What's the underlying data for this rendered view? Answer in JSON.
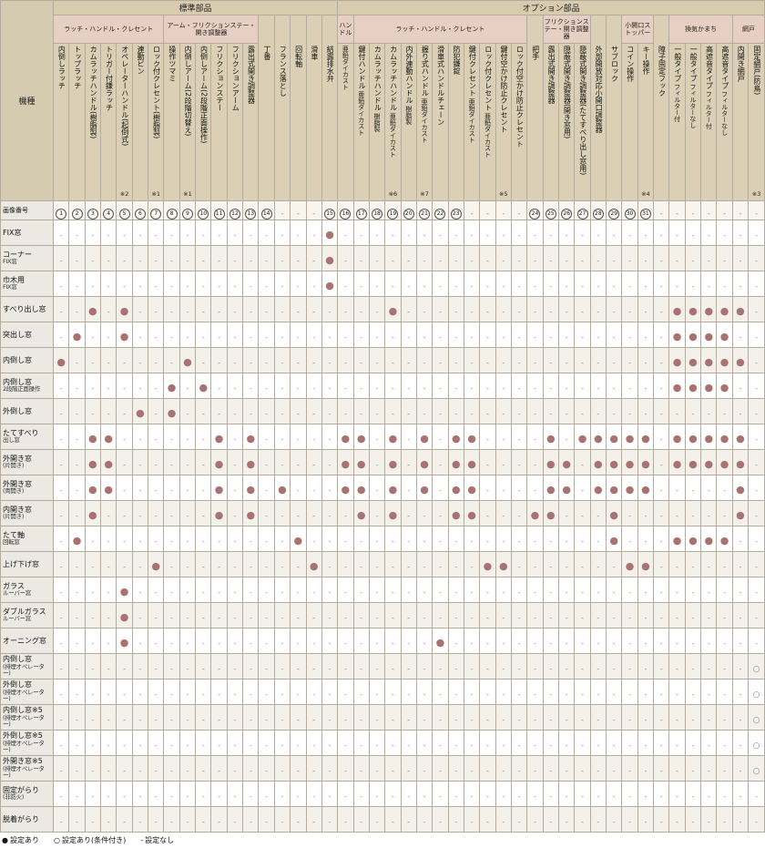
{
  "colors": {
    "dot": "#a87272",
    "header_beige": "#dbd0b5",
    "group_pink": "#e8cfc3",
    "top_band": "#d8cbae",
    "grid_line": "#b3ac9e",
    "row_label_bg": "#ebe9e1",
    "alt_row_bg": "#f3f1ea"
  },
  "header": {
    "model_label": "機種",
    "image_number_label": "画像番号",
    "sections": [
      {
        "label": "標準部品",
        "span": 18
      },
      {
        "label": "オプション部品",
        "span": 27
      }
    ],
    "groups": [
      {
        "label": "ラッチ・ハンドル・クレセント",
        "span": 7
      },
      {
        "label": "アーム・フリクションステー・開き調整器",
        "span": 6
      },
      {
        "label": "",
        "span": 1
      },
      {
        "label": "",
        "span": 1
      },
      {
        "label": "",
        "span": 1
      },
      {
        "label": "",
        "span": 1
      },
      {
        "label": "",
        "span": 1
      },
      {
        "label": "ハンドル",
        "span": 1
      },
      {
        "label": "ラッチ・ハンドル・クレセント",
        "span": 11
      },
      {
        "label": "",
        "span": 1
      },
      {
        "label": "フリクションステー・開き調整器",
        "span": 3
      },
      {
        "label": "",
        "span": 1
      },
      {
        "label": "",
        "span": 1
      },
      {
        "label": "小開口ストッパー",
        "span": 2
      },
      {
        "label": "",
        "span": 1
      },
      {
        "label": "換気かまち",
        "span": 4
      },
      {
        "label": "網戸",
        "span": 2
      }
    ],
    "columns": [
      {
        "label": "内倒しラッチ",
        "sub": "",
        "note": "",
        "num": "1"
      },
      {
        "label": "トップラッチ",
        "sub": "",
        "note": "",
        "num": "2"
      },
      {
        "label": "カムラッチハンドル(樹脂製)",
        "sub": "",
        "note": "",
        "num": "3"
      },
      {
        "label": "トリガー付鎌ラッチ",
        "sub": "",
        "note": "",
        "num": "4"
      },
      {
        "label": "オペレーターハンドル(起倒式)",
        "sub": "",
        "note": "※2",
        "num": "5"
      },
      {
        "label": "連動ビン",
        "sub": "",
        "note": "",
        "num": "6"
      },
      {
        "label": "ロック付クレセント(樹脂製)",
        "sub": "",
        "note": "※1",
        "num": "7"
      },
      {
        "label": "操作ツマミ",
        "sub": "",
        "note": "",
        "num": "8"
      },
      {
        "label": "内倒しアーム(2段階切替え)",
        "sub": "",
        "note": "※1",
        "num": "9"
      },
      {
        "label": "内倒しアーム(2段階正面操作)",
        "sub": "",
        "note": "",
        "num": "10"
      },
      {
        "label": "フリクションステー",
        "sub": "",
        "note": "",
        "num": "11"
      },
      {
        "label": "フリクションアーム",
        "sub": "",
        "note": "",
        "num": "12"
      },
      {
        "label": "露出式開き調整器",
        "sub": "",
        "note": "",
        "num": "13"
      },
      {
        "label": "丁番",
        "sub": "",
        "note": "",
        "num": "14"
      },
      {
        "label": "フランス落とし",
        "sub": "",
        "note": "",
        "num": "-"
      },
      {
        "label": "回転軸",
        "sub": "",
        "note": "",
        "num": "-"
      },
      {
        "label": "滑車",
        "sub": "",
        "note": "",
        "num": "-"
      },
      {
        "label": "結露排水弁",
        "sub": "",
        "note": "",
        "num": "15"
      },
      {
        "label": "",
        "sub": "亜鉛ダイカスト",
        "note": "",
        "num": "16"
      },
      {
        "label": "鍵付ハンドル",
        "sub": "亜鉛ダイカスト",
        "note": "",
        "num": "17"
      },
      {
        "label": "カムラッチハンドル",
        "sub": "樹脂製",
        "note": "",
        "num": "18"
      },
      {
        "label": "カムラッチハンドル",
        "sub": "亜鉛ダイカスト",
        "note": "※6",
        "num": "19"
      },
      {
        "label": "内外連動ハンドル",
        "sub": "樹脂製",
        "note": "",
        "num": "20"
      },
      {
        "label": "握り式ハンドル",
        "sub": "亜鉛ダイカスト",
        "note": "※7",
        "num": "21"
      },
      {
        "label": "滑車式ハンドルチェーン",
        "sub": "",
        "note": "",
        "num": "22"
      },
      {
        "label": "防犯鎌錠",
        "sub": "",
        "note": "",
        "num": "23"
      },
      {
        "label": "鍵付クレセント",
        "sub": "亜鉛ダイカスト",
        "note": "",
        "num": "-"
      },
      {
        "label": "ロック付クレセント",
        "sub": "亜鉛ダイカスト",
        "note": "",
        "num": "-"
      },
      {
        "label": "鍵付空かけ防止クレセント",
        "sub": "",
        "note": "※5",
        "num": "-"
      },
      {
        "label": "ロック付空かけ防止クレセント",
        "sub": "",
        "note": "",
        "num": "-"
      },
      {
        "label": "把手",
        "sub": "",
        "note": "",
        "num": "24"
      },
      {
        "label": "露出式開き調整器",
        "sub": "",
        "note": "",
        "num": "25"
      },
      {
        "label": "隠蔽式開き調整器(開き窓用)",
        "sub": "",
        "note": "",
        "num": "26"
      },
      {
        "label": "隠蔽式開き調整器(たてすべり出し窓用)",
        "sub": "",
        "note": "",
        "num": "27"
      },
      {
        "label": "外部開放対応小開口調整器",
        "sub": "",
        "note": "",
        "num": "28"
      },
      {
        "label": "サブロック",
        "sub": "",
        "note": "",
        "num": "29"
      },
      {
        "label": "コイン操作",
        "sub": "",
        "note": "",
        "num": "30"
      },
      {
        "label": "キー操作",
        "sub": "",
        "note": "※4",
        "num": "31"
      },
      {
        "label": "障子固定フック",
        "sub": "",
        "note": "",
        "num": "-"
      },
      {
        "label": "一般タイプ",
        "sub": "フィルター付",
        "note": "",
        "num": "-"
      },
      {
        "label": "一般タイプ",
        "sub": "フィルターなし",
        "note": "",
        "num": "-"
      },
      {
        "label": "高遮音タイプ",
        "sub": "フィルター付",
        "note": "",
        "num": "-"
      },
      {
        "label": "高遮音タイプ",
        "sub": "フィルターなし",
        "note": "",
        "num": "-"
      },
      {
        "label": "内開き網戸",
        "sub": "",
        "note": "",
        "num": "-"
      },
      {
        "label": "固定網戸(防鳥)",
        "sub": "",
        "note": "※3",
        "num": "-"
      }
    ]
  },
  "rows": [
    {
      "label": "FIX窓",
      "label2": "",
      "dots": [
        18
      ],
      "circles": []
    },
    {
      "label": "コーナー",
      "label2": "FIX窓",
      "dots": [
        18
      ],
      "circles": []
    },
    {
      "label": "巾木用",
      "label2": "FIX窓",
      "dots": [
        18
      ],
      "circles": []
    },
    {
      "label": "すべり出し窓",
      "label2": "",
      "dots": [
        3,
        5,
        22,
        40,
        41,
        42,
        43,
        44
      ],
      "circles": []
    },
    {
      "label": "突出し窓",
      "label2": "",
      "dots": [
        2,
        5,
        40,
        41,
        42,
        43
      ],
      "circles": []
    },
    {
      "label": "内倒し窓",
      "label2": "",
      "dots": [
        1,
        9,
        40,
        41,
        42,
        43,
        44
      ],
      "circles": []
    },
    {
      "label": "内倒し窓",
      "label2": "2段階正面操作",
      "dots": [
        8,
        10,
        40,
        41,
        42,
        43
      ],
      "circles": []
    },
    {
      "label": "外倒し窓",
      "label2": "",
      "dots": [
        6,
        8
      ],
      "circles": []
    },
    {
      "label": "たてすべり",
      "label2": "出し窓",
      "dots": [
        3,
        4,
        11,
        13,
        19,
        20,
        22,
        24,
        26,
        27,
        32,
        34,
        35,
        36,
        37,
        38,
        40,
        41,
        42,
        43,
        44
      ],
      "circles": []
    },
    {
      "label": "外開き窓",
      "label2": "(片開き)",
      "dots": [
        3,
        4,
        11,
        13,
        19,
        20,
        22,
        24,
        26,
        27,
        32,
        33,
        35,
        36,
        37,
        38,
        40,
        41,
        42,
        43,
        44
      ],
      "circles": []
    },
    {
      "label": "外開き窓",
      "label2": "(両開き)",
      "dots": [
        3,
        4,
        11,
        13,
        15,
        19,
        20,
        22,
        24,
        26,
        27,
        32,
        33,
        35,
        36,
        37,
        38,
        44
      ],
      "circles": []
    },
    {
      "label": "内開き窓",
      "label2": "(片開き)",
      "dots": [
        3,
        11,
        13,
        20,
        22,
        26,
        27,
        31,
        32,
        36,
        44
      ],
      "circles": []
    },
    {
      "label": "たて軸",
      "label2": "回転窓",
      "dots": [
        2,
        16,
        36,
        40,
        41,
        42,
        43
      ],
      "circles": []
    },
    {
      "label": "上げ下げ窓",
      "label2": "",
      "dots": [
        7,
        17,
        28,
        29,
        37,
        38
      ],
      "circles": []
    },
    {
      "label": "ガラス",
      "label2": "ルーバー窓",
      "dots": [
        5
      ],
      "circles": []
    },
    {
      "label": "ダブルガラス",
      "label2": "ルーバー窓",
      "dots": [
        5
      ],
      "circles": []
    },
    {
      "label": "オーニング窓",
      "label2": "",
      "dots": [
        5,
        25
      ],
      "circles": []
    },
    {
      "label": "内倒し窓",
      "label2": "(排煙オペレーター)",
      "dots": [],
      "circles": [
        45
      ]
    },
    {
      "label": "外倒し窓",
      "label2": "(排煙オペレーター)",
      "dots": [],
      "circles": [
        45
      ]
    },
    {
      "label": "内倒し窓※5",
      "label2": "(排煙オペレーター)",
      "dots": [],
      "circles": [
        45
      ]
    },
    {
      "label": "外倒し窓※5",
      "label2": "(排煙オペレーター)",
      "dots": [],
      "circles": [
        45
      ]
    },
    {
      "label": "外開き窓※5",
      "label2": "(排煙オペレーター)",
      "dots": [],
      "circles": [
        45
      ]
    },
    {
      "label": "固定がらり",
      "label2": "(非防火)",
      "dots": [],
      "circles": []
    },
    {
      "label": "脱着がらり",
      "label2": "",
      "dots": [],
      "circles": []
    }
  ],
  "legend": {
    "entries": [
      {
        "symbol": "●",
        "label": "設定あり"
      },
      {
        "symbol": "○",
        "label": "設定あり(条件付き)"
      },
      {
        "symbol": "-",
        "label": "設定なし"
      }
    ]
  }
}
